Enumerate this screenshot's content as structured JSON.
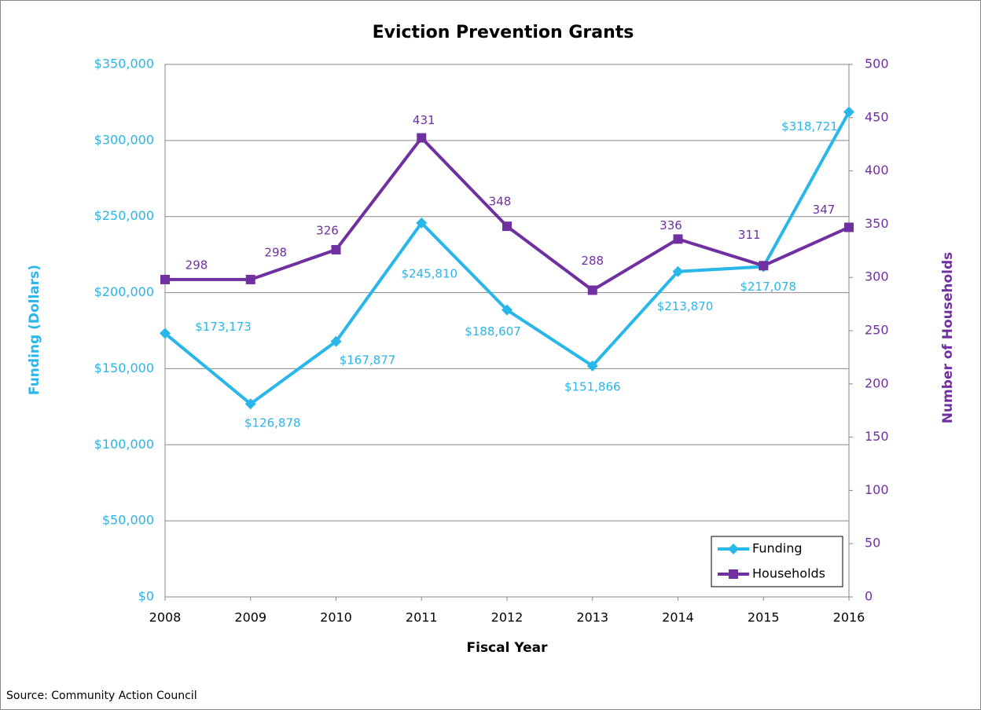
{
  "chart_data": {
    "type": "line",
    "title": "Eviction Prevention Grants",
    "x_label": "Fiscal Year",
    "y_label": "Funding (Dollars)",
    "y2_label": "Number of Households",
    "source": "Source: Community  Action Council",
    "categories": [
      "2008",
      "2009",
      "2010",
      "2011",
      "2012",
      "2013",
      "2014",
      "2015",
      "2016"
    ],
    "series": [
      {
        "name": "Funding",
        "color": "#29b6e8",
        "axis": "y",
        "values": [
          173173,
          126878,
          167877,
          245810,
          188607,
          151866,
          213870,
          217078,
          318721
        ],
        "value_labels": [
          "$173,173",
          "$126,878",
          "$167,877",
          "$245,810",
          "$188,607",
          "$151,866",
          "$213,870",
          "$217,078",
          "$318,721"
        ]
      },
      {
        "name": "Households",
        "color": "#7030a0",
        "axis": "y2",
        "values": [
          298,
          298,
          326,
          431,
          348,
          288,
          336,
          311,
          347
        ]
      }
    ],
    "ylim": [
      0,
      350000
    ],
    "yticks": [
      {
        "value": 0,
        "label": "$0"
      },
      {
        "value": 50000,
        "label": "$50,000"
      },
      {
        "value": 100000,
        "label": "$100,000"
      },
      {
        "value": 150000,
        "label": "$150,000"
      },
      {
        "value": 200000,
        "label": "$200,000"
      },
      {
        "value": 250000,
        "label": "$250,000"
      },
      {
        "value": 300000,
        "label": "$300,000"
      },
      {
        "value": 350000,
        "label": "$350,000"
      }
    ],
    "y2lim": [
      0,
      500
    ],
    "y2ticks": [
      0,
      50,
      100,
      150,
      200,
      250,
      300,
      350,
      400,
      450,
      500
    ],
    "grid": true,
    "legend": "bottom-right"
  }
}
